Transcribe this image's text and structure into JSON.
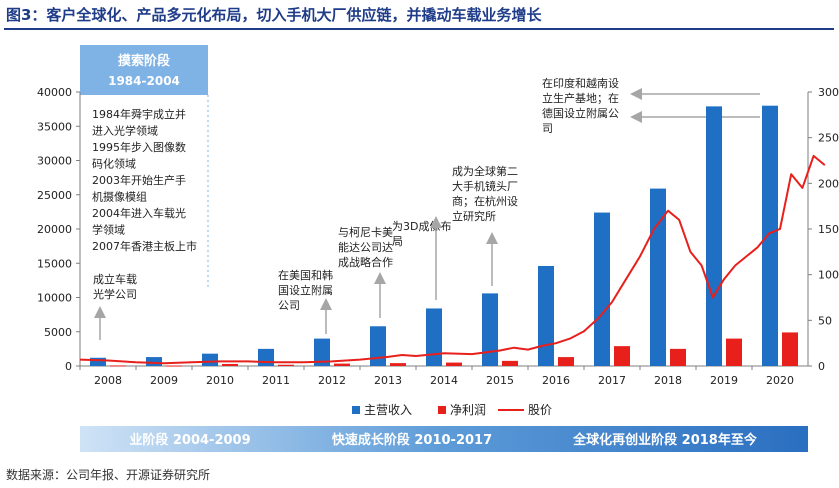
{
  "title": "图3：客户全球化、产品多元化布局，切入手机大厂供应链，并撬动车载业务增长",
  "source": "数据来源：公司年报、开源证券研究所",
  "colors": {
    "revenue": "#1f6fc4",
    "profit": "#e8201c",
    "price": "#e8201c",
    "title": "#1f3c88",
    "stage_box": "#7fb2e5",
    "annotation_arrow": "#a6a6a6"
  },
  "stage_box": {
    "title": "摸索阶段",
    "years": "1984-2004"
  },
  "early_notes": [
    "1984年舜宇成立并",
    "进入光学领域",
    "1995年步入图像数",
    "码化领域",
    "2003年开始生产手",
    "机摄像模组",
    "2004年进入车载光",
    "学领域",
    "2007年香港主板上市"
  ],
  "annotations": [
    {
      "year": "2008",
      "lines": [
        "成立车载",
        "光学公司"
      ]
    },
    {
      "year": "2011",
      "lines": [
        "在美国和韩",
        "国设立附属",
        "公司"
      ]
    },
    {
      "year": "2013",
      "lines": [
        "与柯尼卡美",
        "能达公司达",
        "成战略合作"
      ]
    },
    {
      "year": "2014",
      "lines": [
        "为3D成像布",
        "局"
      ]
    },
    {
      "year": "2015",
      "lines": [
        "成为全球第二",
        "大手机镜头厂",
        "商；在杭州设",
        "立研究所"
      ]
    },
    {
      "year": "2019",
      "lines": [
        "在印度和越南设",
        "立生产基地；在",
        "德国设立附属公",
        "司"
      ]
    }
  ],
  "legend": [
    "主营收入",
    "净利润",
    "股价"
  ],
  "phases": [
    "业阶段 2004-2009",
    "快速成长阶段 2010-2017",
    "全球化再创业阶段 2018年至今"
  ],
  "chart_data": {
    "type": "bar",
    "categories": [
      "2008",
      "2009",
      "2010",
      "2011",
      "2012",
      "2013",
      "2014",
      "2015",
      "2016",
      "2017",
      "2018",
      "2019",
      "2020"
    ],
    "series": [
      {
        "name": "主营收入",
        "type": "bar",
        "axis": "left",
        "values": [
          1200,
          1300,
          1800,
          2500,
          4000,
          5800,
          8400,
          10600,
          14600,
          22400,
          25900,
          37900,
          38000
        ]
      },
      {
        "name": "净利润",
        "type": "bar",
        "axis": "left",
        "values": [
          80,
          70,
          300,
          180,
          350,
          420,
          500,
          750,
          1300,
          2900,
          2500,
          4000,
          4900
        ]
      },
      {
        "name": "股价",
        "type": "line",
        "axis": "right",
        "x": [
          2007.5,
          2008.0,
          2008.5,
          2009.0,
          2009.5,
          2010.0,
          2010.5,
          2011.0,
          2011.5,
          2012.0,
          2012.5,
          2013.0,
          2013.25,
          2013.5,
          2014.0,
          2014.5,
          2015.0,
          2015.25,
          2015.5,
          2015.75,
          2016.0,
          2016.25,
          2016.5,
          2016.75,
          2017.0,
          2017.25,
          2017.5,
          2017.75,
          2018.0,
          2018.2,
          2018.4,
          2018.6,
          2018.8,
          2019.0,
          2019.2,
          2019.4,
          2019.6,
          2019.8,
          2020.0,
          2020.2,
          2020.4,
          2020.6,
          2020.8
        ],
        "values": [
          7,
          6,
          4,
          3,
          4,
          5,
          5,
          4,
          4,
          5,
          7,
          10,
          12,
          11,
          14,
          13,
          17,
          20,
          18,
          22,
          25,
          30,
          38,
          52,
          70,
          95,
          120,
          150,
          170,
          160,
          125,
          110,
          75,
          95,
          110,
          120,
          130,
          145,
          150,
          210,
          195,
          230,
          220
        ]
      }
    ],
    "ylim_left": [
      0,
      40000
    ],
    "yticks_left": [
      0,
      5000,
      10000,
      15000,
      20000,
      25000,
      30000,
      35000,
      40000
    ],
    "ylim_right": [
      0,
      300
    ],
    "yticks_right": [
      0,
      50,
      100,
      150,
      200,
      250,
      300
    ],
    "grid": false,
    "legend_position": "bottom"
  }
}
